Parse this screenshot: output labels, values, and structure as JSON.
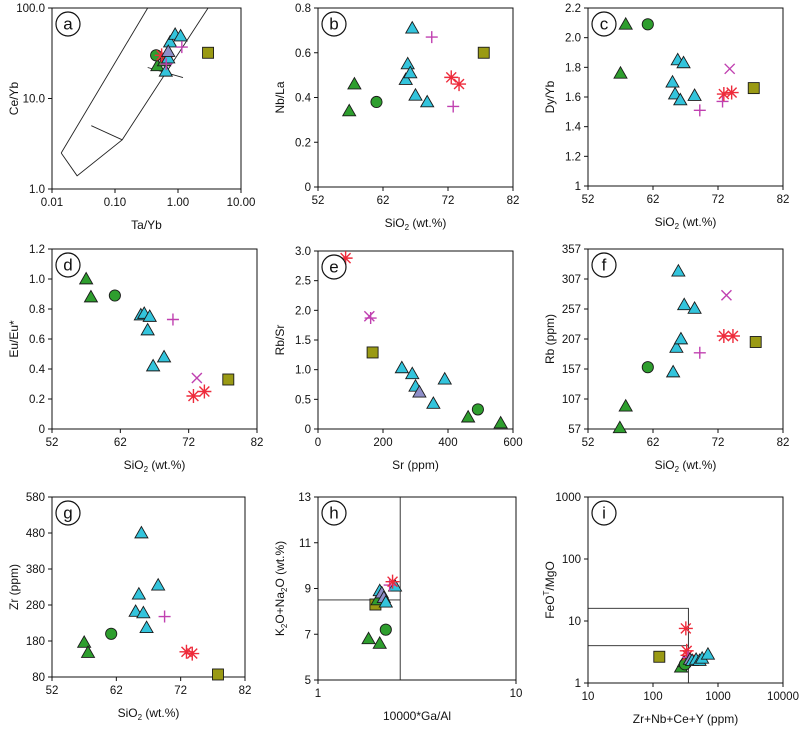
{
  "colors": {
    "triangle_green": "#2e9e2e",
    "circle_green": "#2e9e2e",
    "triangle_cyan": "#33c4dc",
    "triangle_lavender": "#8e8ec8",
    "plus_magenta": "#c040b0",
    "star_red": "#ee2b3b",
    "square_olive": "#9a9a14",
    "axis": "#111111"
  },
  "chart_data": [
    {
      "id": "a",
      "letter": "a",
      "type": "scatter",
      "xscale": "log",
      "yscale": "log",
      "xlim": [
        0.01,
        10
      ],
      "ylim": [
        1,
        100
      ],
      "xticks": [
        0.01,
        0.1,
        1,
        10
      ],
      "xtick_labels": [
        "0.01",
        "0.10",
        "1.00",
        "10.00"
      ],
      "yticks": [
        1,
        10,
        100
      ],
      "ytick_labels": [
        "1.0",
        "10.0",
        "100.0"
      ],
      "xlabel": "Ta/Yb",
      "ylabel": "Ce/Yb",
      "polylines": [
        [
          [
            0.014,
            2.5
          ],
          [
            0.025,
            1.4
          ],
          [
            0.13,
            3.5
          ],
          [
            3.0,
            100
          ]
        ],
        [
          [
            0.014,
            2.5
          ],
          [
            0.33,
            100
          ]
        ],
        [
          [
            0.042,
            5.0
          ],
          [
            0.13,
            3.5
          ]
        ],
        [
          [
            0.33,
            22
          ],
          [
            1.2,
            17
          ]
        ]
      ],
      "points": [
        {
          "m": "triangle_green",
          "x": 0.47,
          "y": 23
        },
        {
          "m": "triangle_green",
          "x": 0.6,
          "y": 26
        },
        {
          "m": "circle_green",
          "x": 0.45,
          "y": 30
        },
        {
          "m": "star_red",
          "x": 0.55,
          "y": 30
        },
        {
          "m": "star_red",
          "x": 0.64,
          "y": 29
        },
        {
          "m": "triangle_cyan",
          "x": 0.64,
          "y": 20
        },
        {
          "m": "triangle_cyan",
          "x": 0.7,
          "y": 28
        },
        {
          "m": "triangle_cyan",
          "x": 0.75,
          "y": 42
        },
        {
          "m": "triangle_cyan",
          "x": 0.9,
          "y": 51
        },
        {
          "m": "triangle_cyan",
          "x": 1.1,
          "y": 49
        },
        {
          "m": "triangle_lavender",
          "x": 0.7,
          "y": 33
        },
        {
          "m": "plus_magenta",
          "x": 0.65,
          "y": 24
        },
        {
          "m": "plus_magenta",
          "x": 1.15,
          "y": 37
        },
        {
          "m": "square_olive",
          "x": 3.0,
          "y": 32
        }
      ]
    },
    {
      "id": "b",
      "letter": "b",
      "type": "scatter",
      "xscale": "linear",
      "yscale": "linear",
      "xlim": [
        52,
        82
      ],
      "ylim": [
        0,
        0.8
      ],
      "xticks": [
        52,
        62,
        72,
        82
      ],
      "xtick_labels": [
        "52",
        "62",
        "72",
        "82"
      ],
      "yticks": [
        0,
        0.2,
        0.4,
        0.6,
        0.8
      ],
      "ytick_labels": [
        "0",
        "0.2",
        "0.4",
        "0.6",
        "0.8"
      ],
      "xlabel": "SiO₂ (wt.%)",
      "ylabel": "Nb/La",
      "points": [
        {
          "m": "triangle_green",
          "x": 56.8,
          "y": 0.34
        },
        {
          "m": "triangle_green",
          "x": 57.6,
          "y": 0.46
        },
        {
          "m": "circle_green",
          "x": 61.0,
          "y": 0.38
        },
        {
          "m": "triangle_cyan",
          "x": 65.5,
          "y": 0.48
        },
        {
          "m": "triangle_cyan",
          "x": 65.8,
          "y": 0.55
        },
        {
          "m": "triangle_cyan",
          "x": 66.2,
          "y": 0.51
        },
        {
          "m": "triangle_cyan",
          "x": 66.5,
          "y": 0.71
        },
        {
          "m": "triangle_cyan",
          "x": 67.0,
          "y": 0.41
        },
        {
          "m": "triangle_cyan",
          "x": 68.8,
          "y": 0.38
        },
        {
          "m": "plus_magenta",
          "x": 69.5,
          "y": 0.67
        },
        {
          "m": "plus_magenta",
          "x": 72.8,
          "y": 0.36
        },
        {
          "m": "star_red",
          "x": 72.5,
          "y": 0.49
        },
        {
          "m": "star_red",
          "x": 73.7,
          "y": 0.46
        },
        {
          "m": "square_olive",
          "x": 77.5,
          "y": 0.6
        }
      ]
    },
    {
      "id": "c",
      "letter": "c",
      "type": "scatter",
      "xscale": "linear",
      "yscale": "linear",
      "xlim": [
        52,
        82
      ],
      "ylim": [
        1,
        2.2
      ],
      "xticks": [
        52,
        62,
        72,
        82
      ],
      "xtick_labels": [
        "52",
        "62",
        "72",
        "82"
      ],
      "yticks": [
        1,
        1.2,
        1.4,
        1.6,
        1.8,
        2.0,
        2.2
      ],
      "ytick_labels": [
        "1",
        "1.2",
        "1.4",
        "1.6",
        "1.8",
        "2.0",
        "2.2"
      ],
      "xlabel": "SiO₂ (wt.%)",
      "ylabel": "Dy/Yb",
      "points": [
        {
          "m": "triangle_green",
          "x": 57.0,
          "y": 1.76
        },
        {
          "m": "triangle_green",
          "x": 57.8,
          "y": 2.09
        },
        {
          "m": "circle_green",
          "x": 61.2,
          "y": 2.09
        },
        {
          "m": "triangle_cyan",
          "x": 65.0,
          "y": 1.7
        },
        {
          "m": "triangle_cyan",
          "x": 65.4,
          "y": 1.62
        },
        {
          "m": "triangle_cyan",
          "x": 65.8,
          "y": 1.85
        },
        {
          "m": "triangle_cyan",
          "x": 66.2,
          "y": 1.58
        },
        {
          "m": "triangle_cyan",
          "x": 66.7,
          "y": 1.83
        },
        {
          "m": "triangle_cyan",
          "x": 68.4,
          "y": 1.61
        },
        {
          "m": "plus_magenta",
          "x": 69.2,
          "y": 1.51
        },
        {
          "m": "plus_magenta",
          "x": 72.7,
          "y": 1.57
        },
        {
          "m": "star_red",
          "x": 72.9,
          "y": 1.62
        },
        {
          "m": "star_red",
          "x": 74.1,
          "y": 1.63
        },
        {
          "m": "x_magenta",
          "x": 73.8,
          "y": 1.79
        },
        {
          "m": "square_olive",
          "x": 77.5,
          "y": 1.66
        }
      ]
    },
    {
      "id": "d",
      "letter": "d",
      "type": "scatter",
      "xscale": "linear",
      "yscale": "linear",
      "xlim": [
        52,
        82
      ],
      "ylim": [
        0,
        1.2
      ],
      "xticks": [
        52,
        62,
        72,
        82
      ],
      "xtick_labels": [
        "52",
        "62",
        "72",
        "82"
      ],
      "yticks": [
        0,
        0.2,
        0.4,
        0.6,
        0.8,
        1.0,
        1.2
      ],
      "ytick_labels": [
        "0",
        "0.2",
        "0.4",
        "0.6",
        "0.8",
        "1.0",
        "1.2"
      ],
      "xlabel": "SiO₂ (wt.%)",
      "ylabel": "Eu/Eu*",
      "points": [
        {
          "m": "triangle_green",
          "x": 57.0,
          "y": 1.0
        },
        {
          "m": "triangle_green",
          "x": 57.7,
          "y": 0.88
        },
        {
          "m": "circle_green",
          "x": 61.2,
          "y": 0.89
        },
        {
          "m": "triangle_cyan",
          "x": 65.0,
          "y": 0.76
        },
        {
          "m": "triangle_cyan",
          "x": 65.5,
          "y": 0.77
        },
        {
          "m": "triangle_cyan",
          "x": 66.0,
          "y": 0.66
        },
        {
          "m": "triangle_cyan",
          "x": 66.3,
          "y": 0.75
        },
        {
          "m": "triangle_cyan",
          "x": 66.8,
          "y": 0.42
        },
        {
          "m": "triangle_cyan",
          "x": 68.4,
          "y": 0.48
        },
        {
          "m": "plus_magenta",
          "x": 69.7,
          "y": 0.73
        },
        {
          "m": "x_magenta",
          "x": 73.2,
          "y": 0.34
        },
        {
          "m": "star_red",
          "x": 72.7,
          "y": 0.22
        },
        {
          "m": "star_red",
          "x": 74.3,
          "y": 0.25
        },
        {
          "m": "square_olive",
          "x": 77.8,
          "y": 0.33
        }
      ]
    },
    {
      "id": "e",
      "letter": "e",
      "type": "scatter",
      "xscale": "linear",
      "yscale": "linear",
      "xlim": [
        0,
        600
      ],
      "ylim": [
        0,
        3.0
      ],
      "xticks": [
        0,
        200,
        400,
        600
      ],
      "xtick_labels": [
        "0",
        "200",
        "400",
        "600"
      ],
      "yticks": [
        0,
        0.5,
        1.0,
        1.5,
        2.0,
        2.5,
        3.0
      ],
      "ytick_labels": [
        "0",
        "0.5",
        "1.0",
        "1.5",
        "2.0",
        "2.5",
        "3.0"
      ],
      "xlabel": "Sr (ppm)",
      "ylabel": "Rb/Sr",
      "points": [
        {
          "m": "star_red",
          "x": 85,
          "y": 2.88
        },
        {
          "m": "x_magenta",
          "x": 158,
          "y": 1.9
        },
        {
          "m": "plus_magenta",
          "x": 162,
          "y": 1.87
        },
        {
          "m": "square_olive",
          "x": 168,
          "y": 1.29
        },
        {
          "m": "triangle_cyan",
          "x": 258,
          "y": 1.03
        },
        {
          "m": "triangle_cyan",
          "x": 290,
          "y": 0.93
        },
        {
          "m": "triangle_cyan",
          "x": 300,
          "y": 0.72
        },
        {
          "m": "triangle_lavender",
          "x": 312,
          "y": 0.62
        },
        {
          "m": "triangle_cyan",
          "x": 355,
          "y": 0.43
        },
        {
          "m": "triangle_cyan",
          "x": 390,
          "y": 0.84
        },
        {
          "m": "triangle_green",
          "x": 462,
          "y": 0.2
        },
        {
          "m": "circle_green",
          "x": 492,
          "y": 0.33
        },
        {
          "m": "triangle_green",
          "x": 562,
          "y": 0.1
        }
      ]
    },
    {
      "id": "f",
      "letter": "f",
      "type": "scatter",
      "xscale": "linear",
      "yscale": "linear",
      "xlim": [
        52,
        82
      ],
      "ylim": [
        57,
        357
      ],
      "xticks": [
        52,
        62,
        72,
        82
      ],
      "xtick_labels": [
        "52",
        "62",
        "72",
        "82"
      ],
      "yticks": [
        57,
        107,
        157,
        207,
        257,
        307,
        357
      ],
      "ytick_labels": [
        "57",
        "107",
        "157",
        "207",
        "257",
        "307",
        "357"
      ],
      "xlabel": "SiO₂ (wt.%)",
      "ylabel": "Rb (ppm)",
      "points": [
        {
          "m": "triangle_green",
          "x": 56.9,
          "y": 59
        },
        {
          "m": "triangle_green",
          "x": 57.8,
          "y": 95
        },
        {
          "m": "circle_green",
          "x": 61.2,
          "y": 160
        },
        {
          "m": "triangle_cyan",
          "x": 65.1,
          "y": 152
        },
        {
          "m": "triangle_cyan",
          "x": 65.6,
          "y": 193
        },
        {
          "m": "triangle_cyan",
          "x": 65.9,
          "y": 320
        },
        {
          "m": "triangle_cyan",
          "x": 66.3,
          "y": 207
        },
        {
          "m": "triangle_cyan",
          "x": 66.8,
          "y": 264
        },
        {
          "m": "triangle_cyan",
          "x": 68.4,
          "y": 258
        },
        {
          "m": "plus_magenta",
          "x": 69.2,
          "y": 184
        },
        {
          "m": "x_magenta",
          "x": 73.3,
          "y": 280
        },
        {
          "m": "star_red",
          "x": 72.9,
          "y": 212
        },
        {
          "m": "star_red",
          "x": 74.3,
          "y": 212
        },
        {
          "m": "square_olive",
          "x": 77.8,
          "y": 202
        }
      ]
    },
    {
      "id": "g",
      "letter": "g",
      "type": "scatter",
      "xscale": "linear",
      "yscale": "linear",
      "xlim": [
        52,
        82
      ],
      "ylim": [
        80,
        580
      ],
      "xticks": [
        52,
        62,
        72,
        82
      ],
      "xtick_labels": [
        "52",
        "62",
        "72",
        "82"
      ],
      "yticks": [
        80,
        180,
        280,
        380,
        480,
        580
      ],
      "ytick_labels": [
        "80",
        "180",
        "280",
        "380",
        "480",
        "580"
      ],
      "xlabel": "SiO₂ (wt.%)",
      "ylabel": "Zr (ppm)",
      "points": [
        {
          "m": "triangle_green",
          "x": 57.0,
          "y": 176
        },
        {
          "m": "triangle_green",
          "x": 57.6,
          "y": 148
        },
        {
          "m": "circle_green",
          "x": 61.2,
          "y": 200
        },
        {
          "m": "triangle_cyan",
          "x": 65.0,
          "y": 262
        },
        {
          "m": "triangle_cyan",
          "x": 65.5,
          "y": 310
        },
        {
          "m": "triangle_cyan",
          "x": 65.9,
          "y": 480
        },
        {
          "m": "triangle_cyan",
          "x": 66.2,
          "y": 258
        },
        {
          "m": "triangle_cyan",
          "x": 66.7,
          "y": 217
        },
        {
          "m": "triangle_cyan",
          "x": 68.5,
          "y": 335
        },
        {
          "m": "plus_magenta",
          "x": 69.5,
          "y": 248
        },
        {
          "m": "star_red",
          "x": 72.9,
          "y": 150
        },
        {
          "m": "star_red",
          "x": 73.8,
          "y": 145
        },
        {
          "m": "square_olive",
          "x": 77.8,
          "y": 87
        }
      ]
    },
    {
      "id": "h",
      "letter": "h",
      "type": "scatter",
      "xscale": "log",
      "yscale": "linear",
      "xlim": [
        1,
        10
      ],
      "ylim": [
        5,
        13
      ],
      "xticks": [
        1,
        10
      ],
      "xtick_labels": [
        "1",
        "10"
      ],
      "yticks": [
        5,
        7,
        9,
        11,
        13
      ],
      "ytick_labels": [
        "5",
        "7",
        "9",
        "11",
        "13"
      ],
      "xlabel": "10000*Ga/Al",
      "ylabel": "K₂O+Na₂O (wt.%)",
      "polylines": [
        [
          [
            1,
            8.5
          ],
          [
            2.6,
            8.5
          ],
          [
            2.6,
            5
          ]
        ],
        [
          [
            2.6,
            8.5
          ],
          [
            2.6,
            13
          ]
        ]
      ],
      "points": [
        {
          "m": "triangle_green",
          "x": 1.8,
          "y": 6.8
        },
        {
          "m": "triangle_green",
          "x": 2.05,
          "y": 6.6
        },
        {
          "m": "circle_green",
          "x": 2.2,
          "y": 7.2
        },
        {
          "m": "square_olive",
          "x": 1.95,
          "y": 8.3
        },
        {
          "m": "triangle_green",
          "x": 2.0,
          "y": 8.5
        },
        {
          "m": "triangle_cyan",
          "x": 2.05,
          "y": 8.9
        },
        {
          "m": "triangle_lavender",
          "x": 2.1,
          "y": 8.8
        },
        {
          "m": "triangle_lavender",
          "x": 2.15,
          "y": 8.6
        },
        {
          "m": "triangle_cyan",
          "x": 2.2,
          "y": 8.4
        },
        {
          "m": "triangle_cyan",
          "x": 2.45,
          "y": 9.1
        },
        {
          "m": "plus_magenta",
          "x": 2.3,
          "y": 9.15
        },
        {
          "m": "star_red",
          "x": 2.38,
          "y": 9.3
        }
      ]
    },
    {
      "id": "i",
      "letter": "i",
      "type": "scatter",
      "xscale": "log",
      "yscale": "log",
      "xlim": [
        10,
        10000
      ],
      "ylim": [
        1,
        1000
      ],
      "xticks": [
        10,
        100,
        1000,
        10000
      ],
      "xtick_labels": [
        "10",
        "100",
        "1000",
        "10000"
      ],
      "yticks": [
        1,
        10,
        100,
        1000
      ],
      "ytick_labels": [
        "1",
        "10",
        "100",
        "1000"
      ],
      "xlabel": "Zr+Nb+Ce+Y (ppm)",
      "ylabel": "FeOᵀ/MgO",
      "polylines": [
        [
          [
            10,
            16
          ],
          [
            350,
            16
          ],
          [
            350,
            1
          ]
        ],
        [
          [
            10,
            4
          ],
          [
            350,
            4
          ]
        ]
      ],
      "points": [
        {
          "m": "triangle_green",
          "x": 270,
          "y": 1.8
        },
        {
          "m": "triangle_green",
          "x": 300,
          "y": 2.2
        },
        {
          "m": "circle_green",
          "x": 310,
          "y": 2.0
        },
        {
          "m": "square_olive",
          "x": 125,
          "y": 2.65
        },
        {
          "m": "star_red",
          "x": 320,
          "y": 7.6
        },
        {
          "m": "star_red",
          "x": 330,
          "y": 3.3
        },
        {
          "m": "star_red",
          "x": 340,
          "y": 2.8
        },
        {
          "m": "plus_magenta",
          "x": 345,
          "y": 2.6
        },
        {
          "m": "triangle_lavender",
          "x": 370,
          "y": 2.4
        },
        {
          "m": "triangle_cyan",
          "x": 400,
          "y": 2.3
        },
        {
          "m": "triangle_cyan",
          "x": 460,
          "y": 2.4
        },
        {
          "m": "triangle_cyan",
          "x": 520,
          "y": 2.3
        },
        {
          "m": "triangle_cyan",
          "x": 570,
          "y": 2.5
        },
        {
          "m": "triangle_cyan",
          "x": 700,
          "y": 2.9
        }
      ]
    }
  ]
}
